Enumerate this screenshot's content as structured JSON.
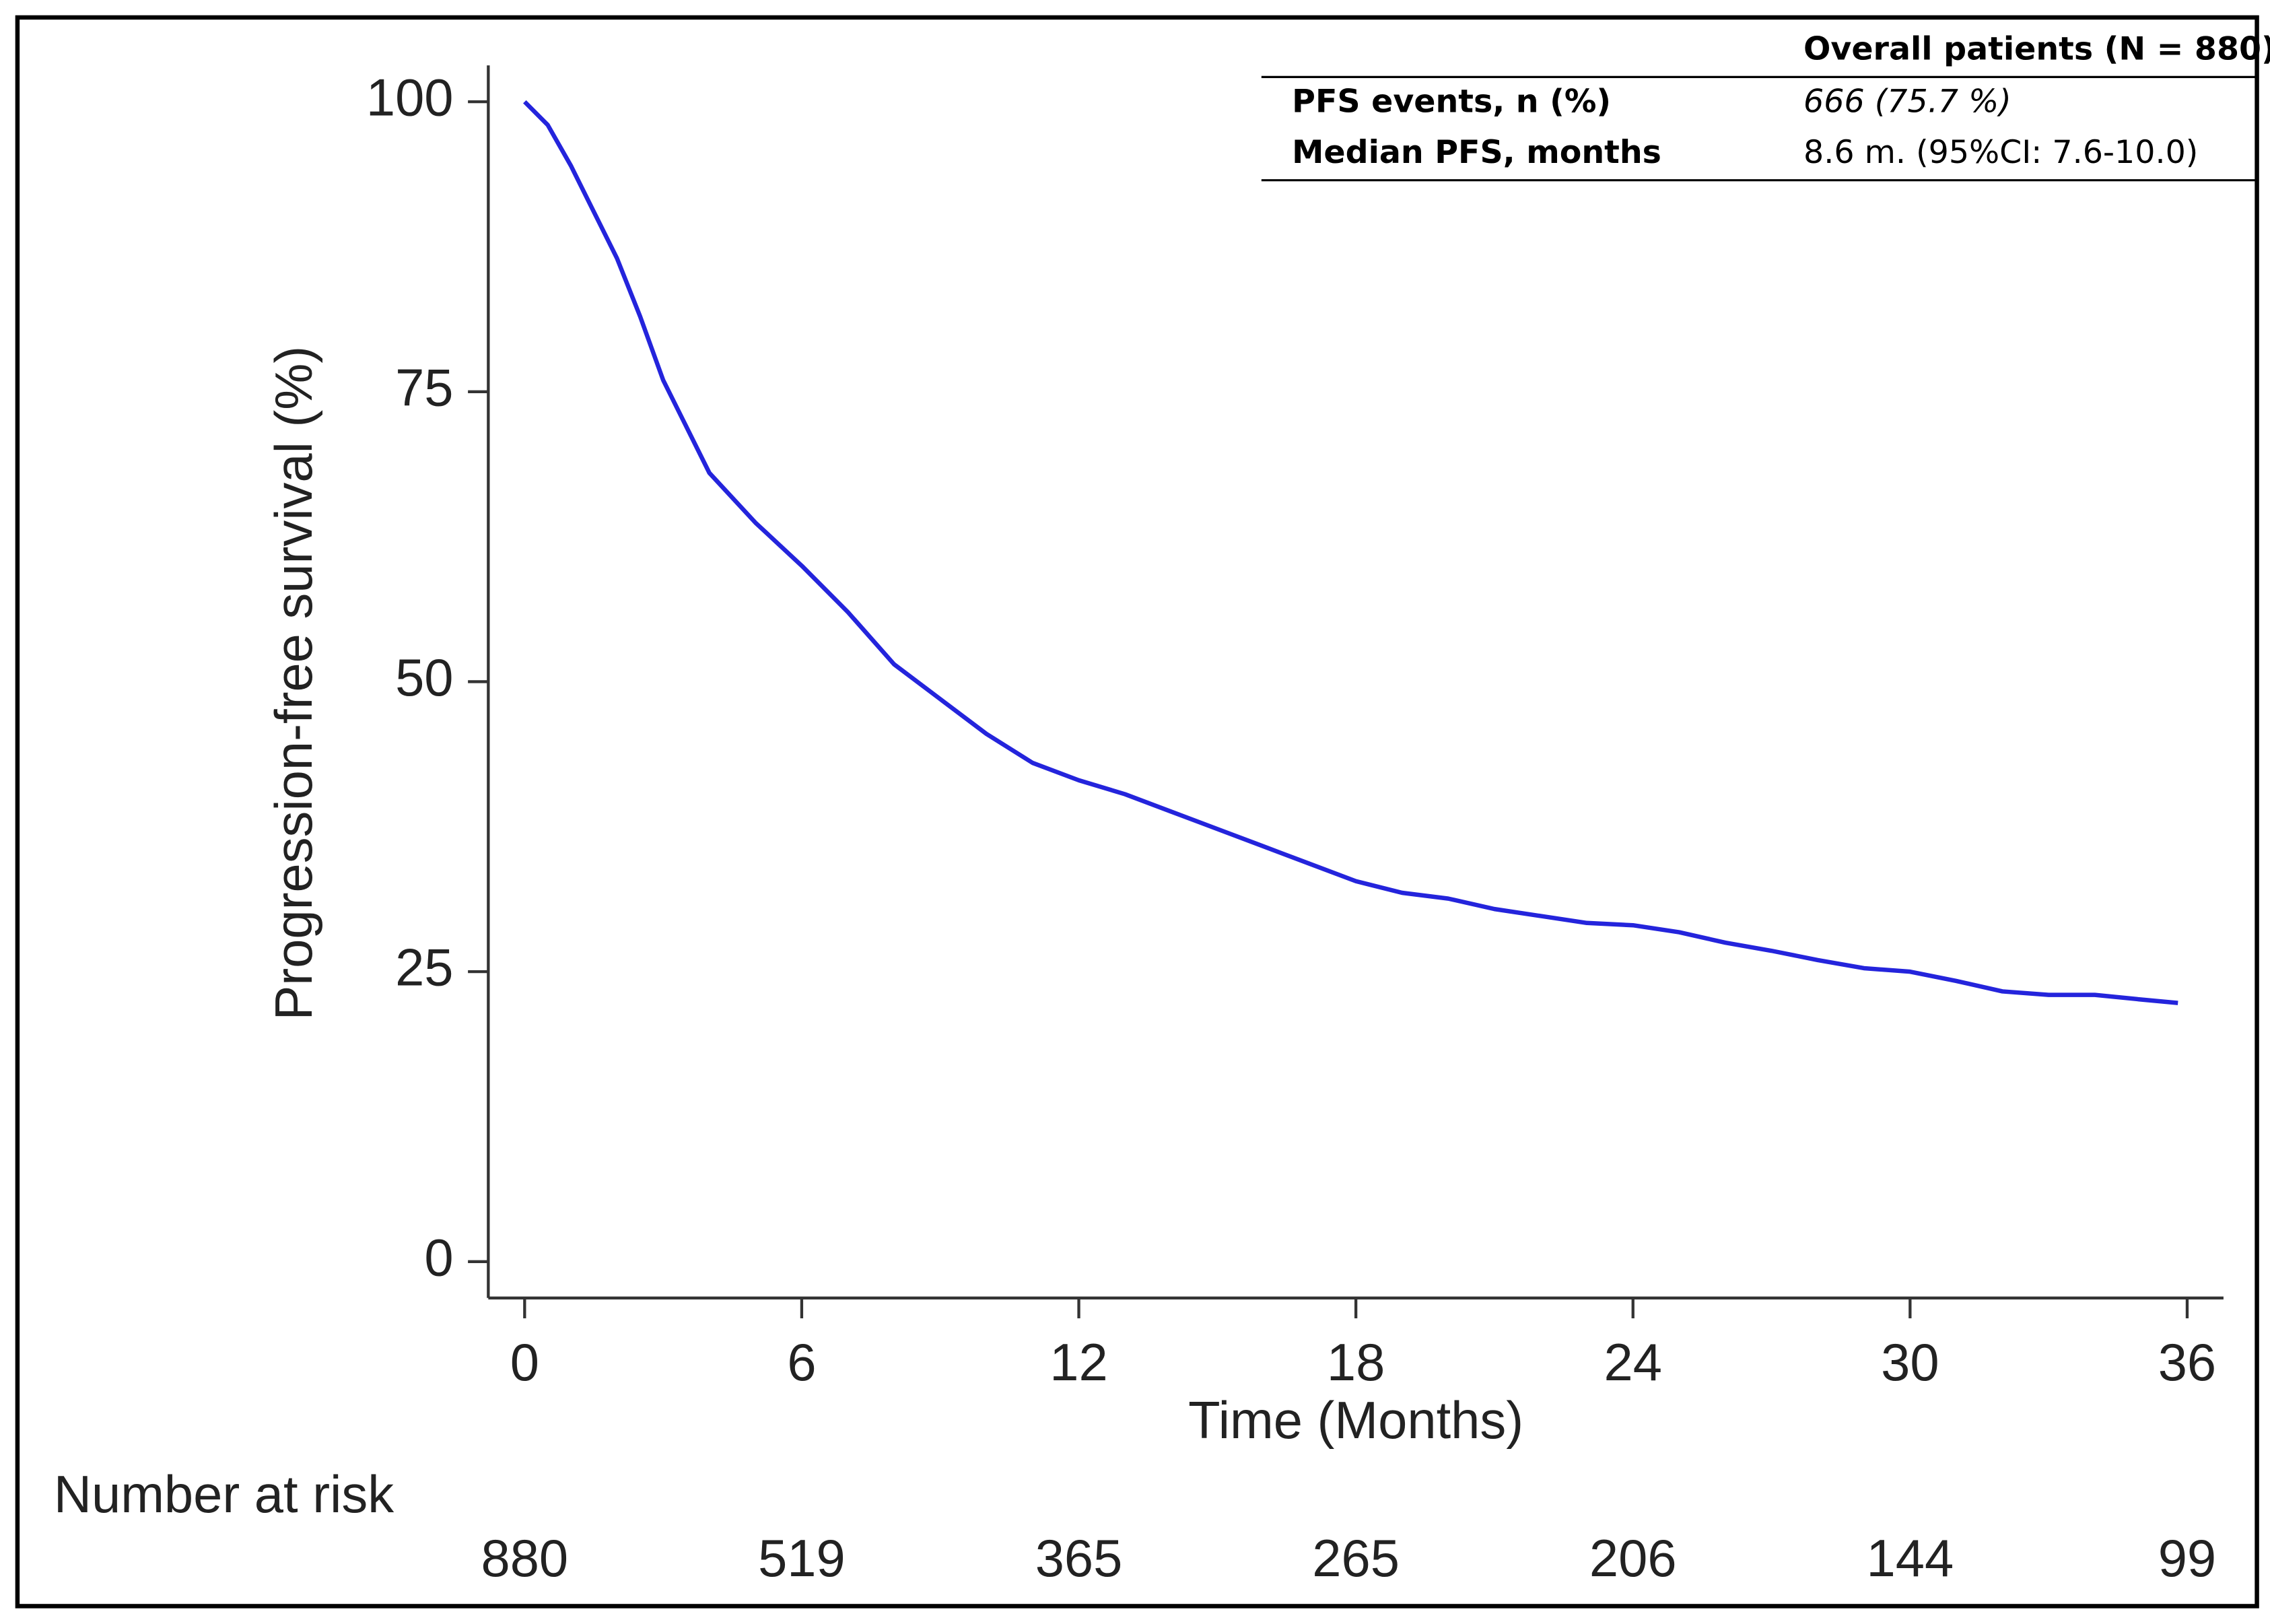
{
  "chart_data": {
    "type": "line",
    "ylabel": "Progression-free survival (%)",
    "xlabel": "Time (Months)",
    "x": [
      0,
      0.5,
      1,
      1.5,
      2,
      2.5,
      3,
      3.5,
      4,
      5,
      6,
      7,
      8,
      9,
      10,
      11,
      12,
      13,
      14,
      15,
      16,
      17,
      18,
      19,
      20,
      21,
      22,
      23,
      24,
      25,
      26,
      27,
      28,
      29,
      30,
      31,
      32,
      33,
      34,
      35,
      35.8
    ],
    "series": [
      {
        "name": "Overall patients",
        "color": "#2424dc",
        "values": [
          100,
          98,
          94.5,
          90.5,
          86.5,
          81.5,
          76,
          72,
          68,
          63.7,
          60,
          56,
          51.5,
          48.5,
          45.5,
          43,
          41.5,
          40.3,
          38.8,
          37.3,
          35.8,
          34.3,
          32.8,
          31.8,
          31.3,
          30.4,
          29.8,
          29.2,
          29,
          28.4,
          27.5,
          26.8,
          26,
          25.3,
          25,
          24.2,
          23.3,
          23,
          23,
          22.6,
          22.3
        ]
      }
    ],
    "xlim": [
      0,
      36
    ],
    "xticks": [
      0,
      6,
      12,
      18,
      24,
      30,
      36
    ],
    "ylim": [
      0,
      100
    ],
    "yticks": [
      0,
      25,
      50,
      75,
      100
    ],
    "grid": false
  },
  "summary_table": {
    "header": "Overall patients  (N = 880)",
    "rows": [
      [
        "PFS events, n (%)",
        "666 (75.7 %)"
      ],
      [
        "Median PFS, months",
        "8.6 m. (95%CI: 7.6-10.0)"
      ]
    ]
  },
  "risk_table": {
    "title": "Number at risk",
    "values": [
      "880",
      "519",
      "365",
      "265",
      "206",
      "144",
      "99"
    ]
  }
}
